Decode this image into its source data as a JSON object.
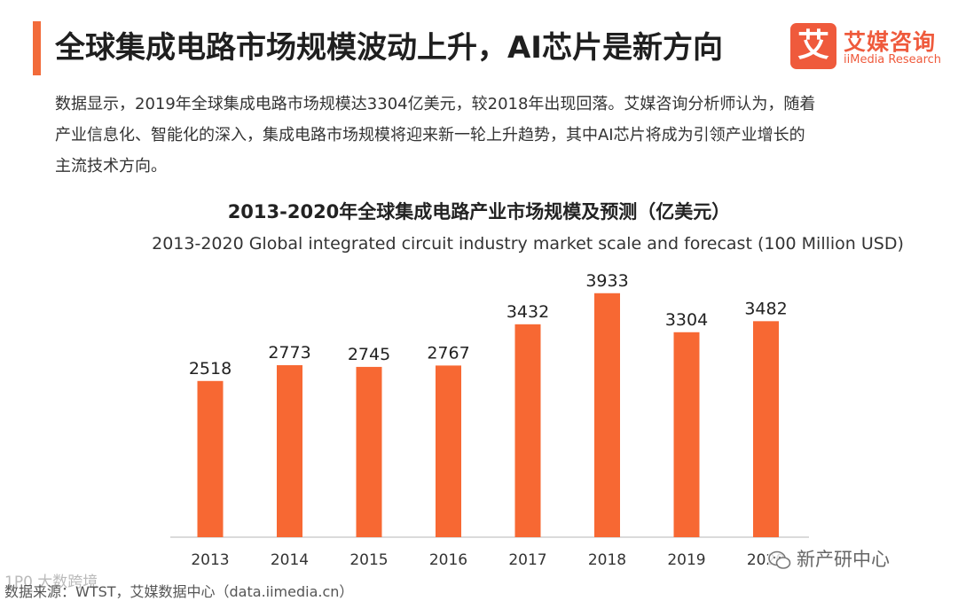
{
  "header": {
    "title": "全球集成电路市场规模波动上升，AI芯片是新方向",
    "logo_mark": "艾",
    "logo_cn": "艾媒咨询",
    "logo_en": "iiMedia Research"
  },
  "intro": {
    "lines": [
      "数据显示，2019年全球集成电路市场规模达3304亿美元，较2018年出现回落。艾媒咨询分析师认为，随着",
      "产业信息化、智能化的深入，集成电路市场规模将迎来新一轮上升趋势，其中AI芯片将成为引领产业增长的",
      "主流技术方向。"
    ]
  },
  "chart_data": {
    "type": "bar",
    "title": "2013-2020年全球集成电路产业市场规模及预测（亿美元）",
    "subtitle": "2013-2020 Global integrated circuit industry market scale and forecast (100 Million USD)",
    "categories": [
      "2013",
      "2014",
      "2015",
      "2016",
      "2017",
      "2018",
      "2019",
      "2020"
    ],
    "values": [
      2518,
      2773,
      2745,
      2767,
      3432,
      3933,
      3304,
      3482
    ],
    "bar_color": "#f76833",
    "ylim": [
      0,
      4500
    ],
    "grid": false,
    "legend": "none"
  },
  "footer": {
    "source": "数据来源：WTST，艾媒数据中心（data.iimedia.cn）",
    "watermark_left": "1P0 大数跨境",
    "watermark_right": "新产研中心",
    "wechat_icon": "wechat-icon"
  }
}
